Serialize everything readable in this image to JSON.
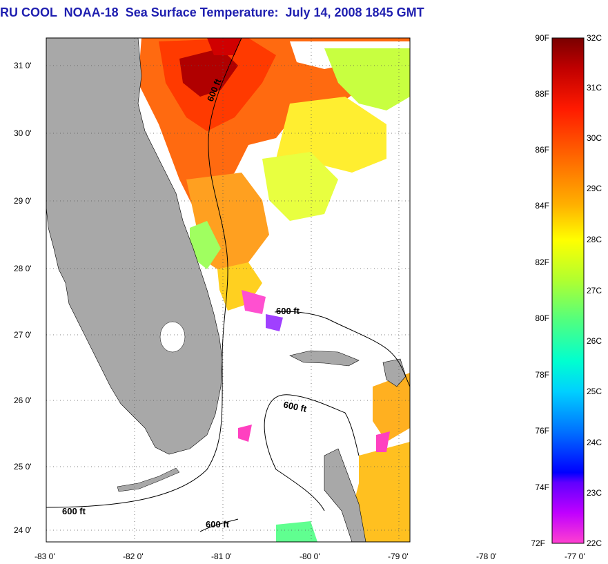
{
  "title": "RU COOL  NOAA-18  Sea Surface Temperature:  July 14, 2008 1845 GMT",
  "map": {
    "lat_ticks": [
      "31 0'",
      "30 0'",
      "29 0'",
      "28 0'",
      "27 0'",
      "26 0'",
      "25 0'",
      "24 0'"
    ],
    "lon_ticks": [
      "-83 0'",
      "-82 0'",
      "-81 0'",
      "-80 0'",
      "-79 0'",
      "-78 0'",
      "-77 0'"
    ],
    "contour_labels": [
      "600 ft",
      "600 ft",
      "600 ft",
      "600 ft",
      "600 ft"
    ],
    "colors": {
      "land": "#a8a8a8",
      "no_data": "#ffffff",
      "contour": "#000000"
    }
  },
  "colorbar": {
    "fahrenheit": [
      "90F",
      "88F",
      "86F",
      "84F",
      "82F",
      "80F",
      "78F",
      "76F",
      "74F",
      "72F"
    ],
    "celsius": [
      "32C",
      "31C",
      "30C",
      "29C",
      "28C",
      "27C",
      "26C",
      "25C",
      "24C",
      "23C",
      "22C"
    ],
    "gradient": [
      "#800000",
      "#d80000",
      "#ff4000",
      "#ff8000",
      "#ffd000",
      "#ffff00",
      "#a0ff40",
      "#40ffa0",
      "#00ffff",
      "#00a0ff",
      "#0040ff",
      "#0000ff",
      "#8000ff",
      "#ff00ff",
      "#ff40d0"
    ]
  }
}
